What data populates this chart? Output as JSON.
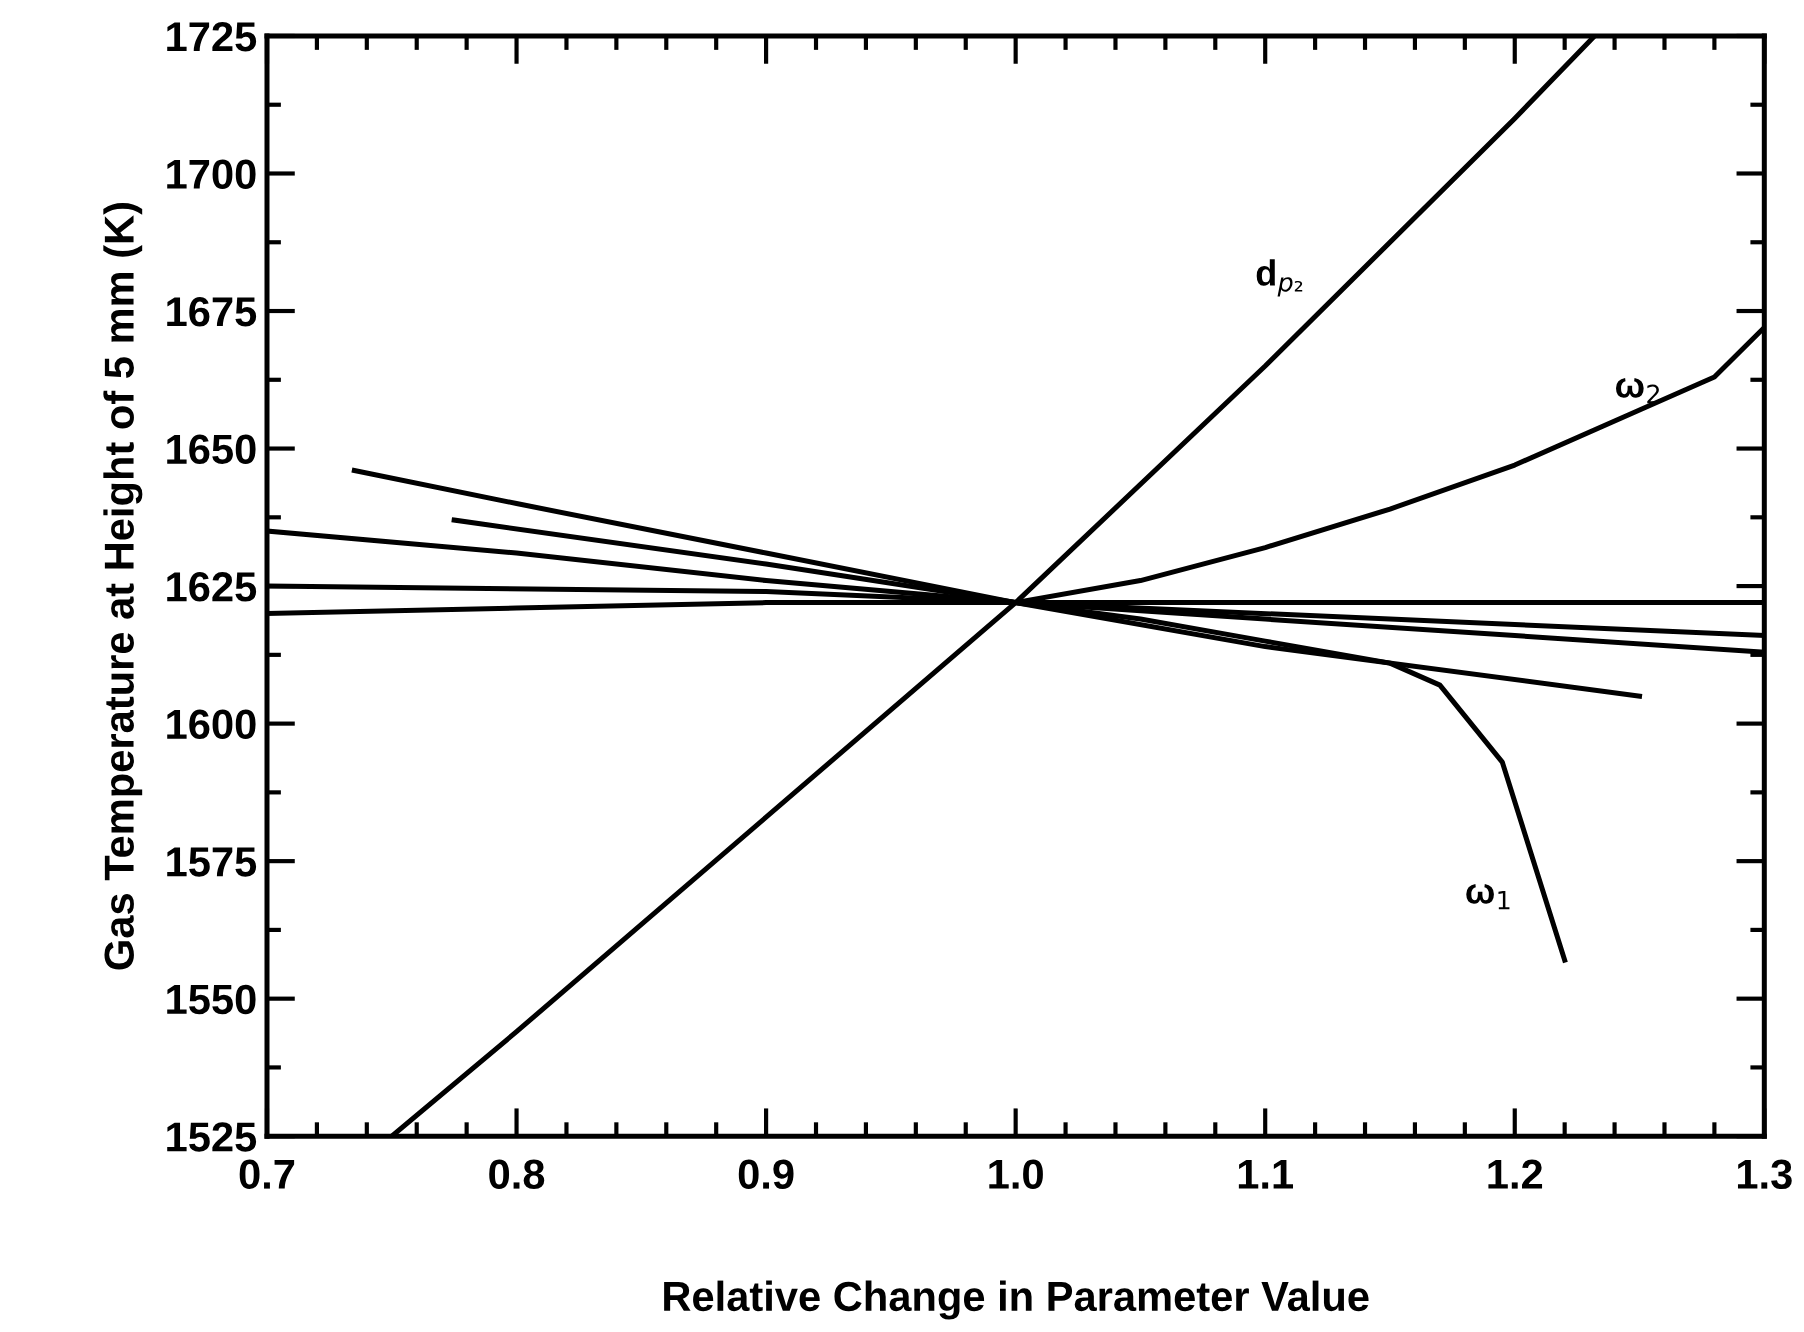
{
  "chart_data": {
    "type": "line",
    "xlabel": "Relative Change in Parameter Value",
    "ylabel": "Gas Temperature at Height of 5 mm (K)",
    "xlim": [
      0.7,
      1.3
    ],
    "ylim": [
      1525,
      1725
    ],
    "xticks": [
      {
        "value": 0.7,
        "label": "0.7"
      },
      {
        "value": 0.8,
        "label": "0.8"
      },
      {
        "value": 0.9,
        "label": "0.9"
      },
      {
        "value": 1.0,
        "label": "1.0"
      },
      {
        "value": 1.1,
        "label": "1.1"
      },
      {
        "value": 1.2,
        "label": "1.2"
      },
      {
        "value": 1.3,
        "label": "1.3"
      },
      {
        "value": 0.72,
        "label": null
      },
      {
        "value": 0.74,
        "label": null
      },
      {
        "value": 0.76,
        "label": null
      },
      {
        "value": 0.78,
        "label": null
      },
      {
        "value": 0.82,
        "label": null
      },
      {
        "value": 0.84,
        "label": null
      },
      {
        "value": 0.86,
        "label": null
      },
      {
        "value": 0.88,
        "label": null
      },
      {
        "value": 0.92,
        "label": null
      },
      {
        "value": 0.94,
        "label": null
      },
      {
        "value": 0.96,
        "label": null
      },
      {
        "value": 0.98,
        "label": null
      },
      {
        "value": 1.02,
        "label": null
      },
      {
        "value": 1.04,
        "label": null
      },
      {
        "value": 1.06,
        "label": null
      },
      {
        "value": 1.08,
        "label": null
      },
      {
        "value": 1.12,
        "label": null
      },
      {
        "value": 1.14,
        "label": null
      },
      {
        "value": 1.16,
        "label": null
      },
      {
        "value": 1.18,
        "label": null
      },
      {
        "value": 1.22,
        "label": null
      },
      {
        "value": 1.24,
        "label": null
      },
      {
        "value": 1.26,
        "label": null
      },
      {
        "value": 1.28,
        "label": null
      }
    ],
    "yticks": [
      1525,
      1550,
      1575,
      1600,
      1625,
      1650,
      1675,
      1700,
      1725,
      {
        "value": 1537.5,
        "label": null
      },
      {
        "value": 1562.5,
        "label": null
      },
      {
        "value": 1587.5,
        "label": null
      },
      {
        "value": 1612.5,
        "label": null
      },
      {
        "value": 1637.5,
        "label": null
      },
      {
        "value": 1662.5,
        "label": null
      },
      {
        "value": 1687.5,
        "label": null
      },
      {
        "value": 1712.5,
        "label": null
      }
    ],
    "grid": false,
    "legend": false,
    "marker": "none",
    "line_style": "solid",
    "series": [
      {
        "color": "#000000",
        "x": [
          0.75,
          0.8,
          0.9,
          1.0,
          1.1,
          1.2,
          1.232
        ],
        "values": [
          1525,
          1544,
          1583,
          1622,
          1665,
          1710,
          1725
        ]
      },
      {
        "color": "#000000",
        "x": [
          0.7,
          0.8,
          0.9,
          1.0,
          1.05,
          1.1,
          1.15,
          1.2,
          1.25,
          1.28,
          1.3
        ],
        "values": [
          1620,
          1621,
          1622,
          1622,
          1626,
          1632,
          1639,
          1647,
          1657,
          1663,
          1672
        ]
      },
      {
        "color": "#000000",
        "x": [
          0.735,
          0.8,
          0.9,
          1.0,
          1.05,
          1.1,
          1.15,
          1.17,
          1.195,
          1.22
        ],
        "values": [
          1646,
          1640,
          1631,
          1622,
          1619,
          1615,
          1611,
          1607,
          1593,
          1557
        ]
      },
      {
        "color": "#000000",
        "x": [
          0.775,
          0.9,
          1.0,
          1.1,
          1.25
        ],
        "values": [
          1637,
          1629,
          1622,
          1614,
          1605
        ]
      },
      {
        "color": "#000000",
        "x": [
          0.7,
          0.8,
          0.9,
          1.0,
          1.1,
          1.2,
          1.3
        ],
        "values": [
          1635,
          1631,
          1626,
          1622,
          1619,
          1616,
          1613
        ]
      },
      {
        "color": "#000000",
        "x": [
          0.7,
          0.9,
          1.0,
          1.15,
          1.3
        ],
        "values": [
          1625,
          1624,
          1622,
          1619,
          1616
        ]
      },
      {
        "color": "#000000",
        "x": [
          1.0,
          1.3
        ],
        "values": [
          1622,
          1622
        ]
      }
    ],
    "annotations": [
      "d$_{p₂}$",
      "ω$_{2}$",
      "ω$_{1}$"
    ]
  }
}
